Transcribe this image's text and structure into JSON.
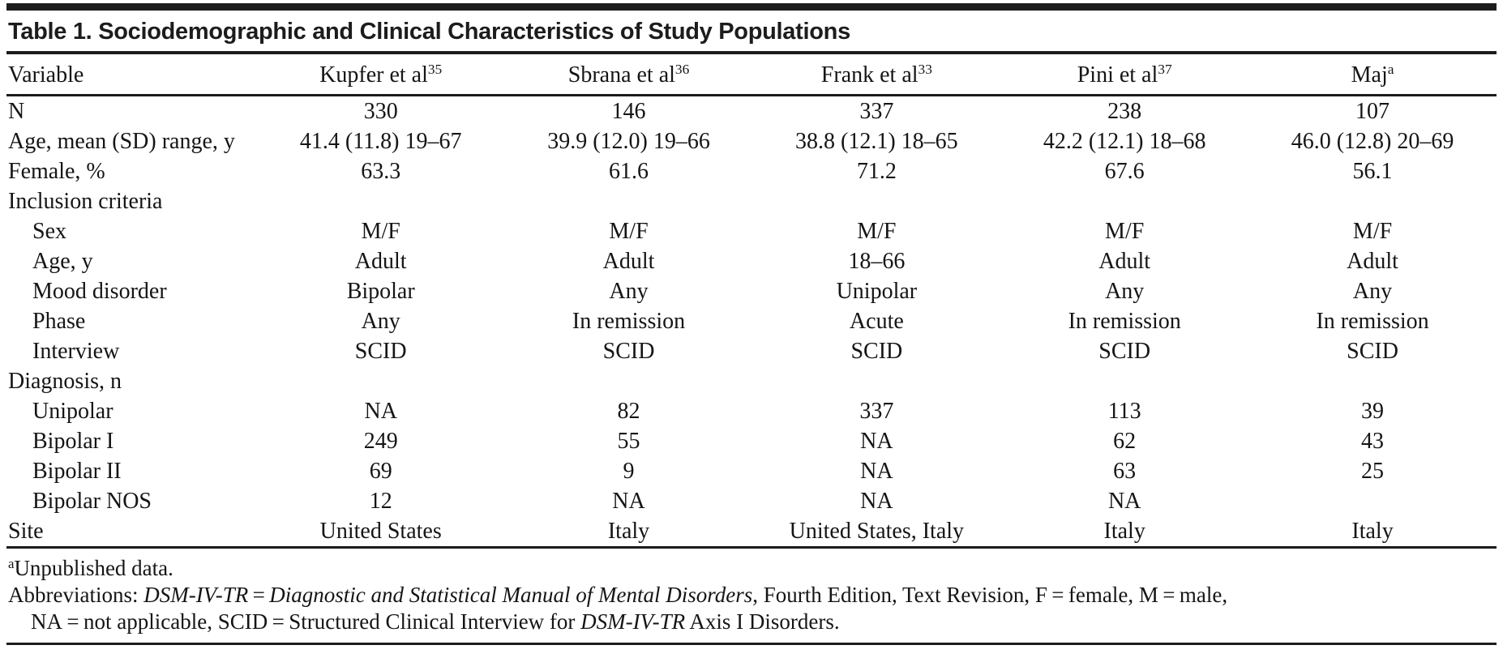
{
  "title": "Table 1. Sociodemographic and Clinical Characteristics of Study Populations",
  "colors": {
    "ink": "#1c1c1c",
    "text": "#151515",
    "background": "#ffffff"
  },
  "table": {
    "columns": [
      {
        "label": "Variable",
        "sup": ""
      },
      {
        "label": "Kupfer et al",
        "sup": "35"
      },
      {
        "label": "Sbrana et al",
        "sup": "36"
      },
      {
        "label": "Frank et al",
        "sup": "33"
      },
      {
        "label": "Pini et al",
        "sup": "37"
      },
      {
        "label": "Maj",
        "sup": "a"
      }
    ],
    "rows": [
      {
        "label": "N",
        "indent": false,
        "section": false,
        "values": [
          "330",
          "146",
          "337",
          "238",
          "107"
        ]
      },
      {
        "label": "Age, mean (SD) range, y",
        "indent": false,
        "section": false,
        "values": [
          "41.4 (11.8) 19–67",
          "39.9 (12.0) 19–66",
          "38.8 (12.1) 18–65",
          "42.2 (12.1) 18–68",
          "46.0 (12.8) 20–69"
        ]
      },
      {
        "label": "Female, %",
        "indent": false,
        "section": false,
        "values": [
          "63.3",
          "61.6",
          "71.2",
          "67.6",
          "56.1"
        ]
      },
      {
        "label": "Inclusion criteria",
        "indent": false,
        "section": true,
        "values": [
          "",
          "",
          "",
          "",
          ""
        ]
      },
      {
        "label": "Sex",
        "indent": true,
        "section": false,
        "values": [
          "M/F",
          "M/F",
          "M/F",
          "M/F",
          "M/F"
        ]
      },
      {
        "label": "Age, y",
        "indent": true,
        "section": false,
        "values": [
          "Adult",
          "Adult",
          "18–66",
          "Adult",
          "Adult"
        ]
      },
      {
        "label": "Mood disorder",
        "indent": true,
        "section": false,
        "values": [
          "Bipolar",
          "Any",
          "Unipolar",
          "Any",
          "Any"
        ]
      },
      {
        "label": "Phase",
        "indent": true,
        "section": false,
        "values": [
          "Any",
          "In remission",
          "Acute",
          "In remission",
          "In remission"
        ]
      },
      {
        "label": "Interview",
        "indent": true,
        "section": false,
        "values": [
          "SCID",
          "SCID",
          "SCID",
          "SCID",
          "SCID"
        ]
      },
      {
        "label": "Diagnosis, n",
        "indent": false,
        "section": true,
        "values": [
          "",
          "",
          "",
          "",
          ""
        ]
      },
      {
        "label": "Unipolar",
        "indent": true,
        "section": false,
        "values": [
          "NA",
          "82",
          "337",
          "113",
          "39"
        ]
      },
      {
        "label": "Bipolar I",
        "indent": true,
        "section": false,
        "values": [
          "249",
          "55",
          "NA",
          "62",
          "43"
        ]
      },
      {
        "label": "Bipolar II",
        "indent": true,
        "section": false,
        "values": [
          "69",
          "9",
          "NA",
          "63",
          "25"
        ]
      },
      {
        "label": "Bipolar NOS",
        "indent": true,
        "section": false,
        "values": [
          "12",
          "NA",
          "NA",
          "NA",
          ""
        ]
      },
      {
        "label": "Site",
        "indent": false,
        "section": false,
        "values": [
          "United States",
          "Italy",
          "United States, Italy",
          "Italy",
          "Italy"
        ]
      }
    ]
  },
  "footnotes": {
    "unpublished_sup": "a",
    "unpublished_text": "Unpublished data.",
    "abbreviations_lines": [
      [
        {
          "text": "Abbreviations: ",
          "italic": false
        },
        {
          "text": "DSM-IV-TR",
          "italic": true
        },
        {
          "text": " = ",
          "italic": false
        },
        {
          "text": "Diagnostic and Statistical Manual of Mental Disorders",
          "italic": true
        },
        {
          "text": ", Fourth Edition, Text Revision, F = female, M = male,",
          "italic": false
        }
      ],
      [
        {
          "text": "NA = not applicable, SCID = Structured Clinical Interview for ",
          "italic": false
        },
        {
          "text": "DSM-IV-TR",
          "italic": true
        },
        {
          "text": " Axis I Disorders.",
          "italic": false
        }
      ]
    ]
  }
}
